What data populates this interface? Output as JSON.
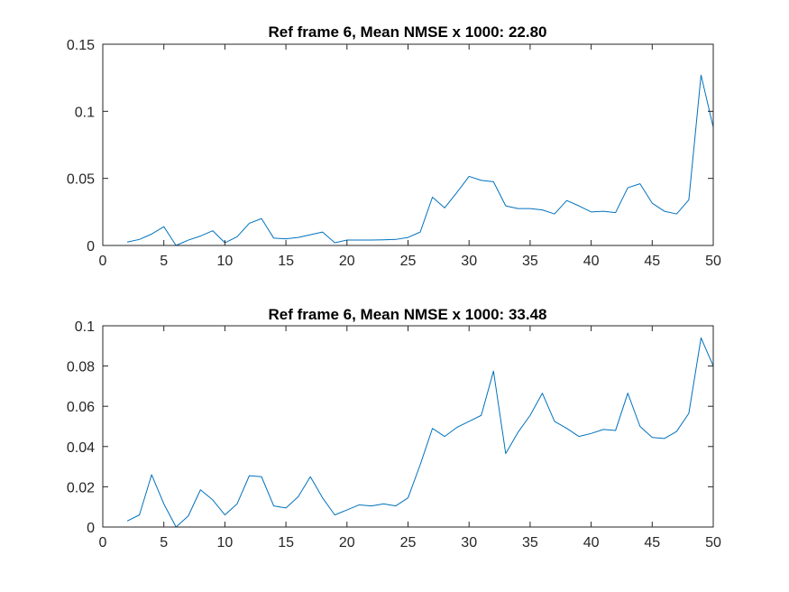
{
  "chart_data": [
    {
      "type": "line",
      "title": "Ref frame 6, Mean NMSE x 1000: 22.80",
      "xlabel": "",
      "ylabel": "",
      "xlim": [
        0,
        50
      ],
      "ylim": [
        0,
        0.15
      ],
      "xticks": [
        0,
        5,
        10,
        15,
        20,
        25,
        30,
        35,
        40,
        45,
        50
      ],
      "yticks": [
        0,
        0.05,
        0.1,
        0.15
      ],
      "xtick_labels": [
        "0",
        "5",
        "10",
        "15",
        "20",
        "25",
        "30",
        "35",
        "40",
        "45",
        "50"
      ],
      "ytick_labels": [
        "0",
        "0.05",
        "0.1",
        "0.15"
      ],
      "grid": false,
      "legend": "none",
      "series": [
        {
          "color": "#0072BD",
          "x": [
            2,
            3,
            4,
            5,
            6,
            7,
            8,
            9,
            10,
            11,
            12,
            13,
            14,
            15,
            16,
            17,
            18,
            19,
            20,
            21,
            22,
            23,
            24,
            25,
            26,
            27,
            28,
            29,
            30,
            31,
            32,
            33,
            34,
            35,
            36,
            37,
            38,
            39,
            40,
            41,
            42,
            43,
            44,
            45,
            46,
            47,
            48,
            49,
            50
          ],
          "values": [
            0.0025,
            0.0045,
            0.0085,
            0.014,
            0.0,
            0.004,
            0.007,
            0.011,
            0.002,
            0.0065,
            0.0165,
            0.02,
            0.0055,
            0.005,
            0.006,
            0.008,
            0.01,
            0.002,
            0.004,
            0.004,
            0.004,
            0.0042,
            0.0045,
            0.006,
            0.01,
            0.036,
            0.028,
            0.0395,
            0.0515,
            0.0485,
            0.0475,
            0.0295,
            0.0275,
            0.0275,
            0.0265,
            0.0235,
            0.0335,
            0.0295,
            0.025,
            0.0255,
            0.0245,
            0.043,
            0.046,
            0.0315,
            0.0255,
            0.0235,
            0.034,
            0.127,
            0.088
          ]
        }
      ]
    },
    {
      "type": "line",
      "title": "Ref frame 6, Mean NMSE x 1000: 33.48",
      "xlabel": "",
      "ylabel": "",
      "xlim": [
        0,
        50
      ],
      "ylim": [
        0,
        0.1
      ],
      "xticks": [
        0,
        5,
        10,
        15,
        20,
        25,
        30,
        35,
        40,
        45,
        50
      ],
      "yticks": [
        0,
        0.02,
        0.04,
        0.06,
        0.08,
        0.1
      ],
      "xtick_labels": [
        "0",
        "5",
        "10",
        "15",
        "20",
        "25",
        "30",
        "35",
        "40",
        "45",
        "50"
      ],
      "ytick_labels": [
        "0",
        "0.02",
        "0.04",
        "0.06",
        "0.08",
        "0.1"
      ],
      "grid": false,
      "legend": "none",
      "series": [
        {
          "color": "#0072BD",
          "x": [
            2,
            3,
            4,
            5,
            6,
            7,
            8,
            9,
            10,
            11,
            12,
            13,
            14,
            15,
            16,
            17,
            18,
            19,
            20,
            21,
            22,
            23,
            24,
            25,
            26,
            27,
            28,
            29,
            30,
            31,
            32,
            33,
            34,
            35,
            36,
            37,
            38,
            39,
            40,
            41,
            42,
            43,
            44,
            45,
            46,
            47,
            48,
            49,
            50
          ],
          "values": [
            0.003,
            0.006,
            0.026,
            0.0115,
            0.0,
            0.0055,
            0.0185,
            0.0135,
            0.006,
            0.0115,
            0.0255,
            0.025,
            0.0105,
            0.0095,
            0.015,
            0.025,
            0.0145,
            0.006,
            0.0085,
            0.011,
            0.0105,
            0.0115,
            0.0105,
            0.0145,
            0.031,
            0.049,
            0.045,
            0.0495,
            0.0525,
            0.0555,
            0.0775,
            0.0365,
            0.047,
            0.0555,
            0.0665,
            0.0525,
            0.049,
            0.045,
            0.0465,
            0.0485,
            0.048,
            0.0665,
            0.05,
            0.0445,
            0.044,
            0.0475,
            0.0565,
            0.094,
            0.08
          ]
        }
      ]
    }
  ]
}
